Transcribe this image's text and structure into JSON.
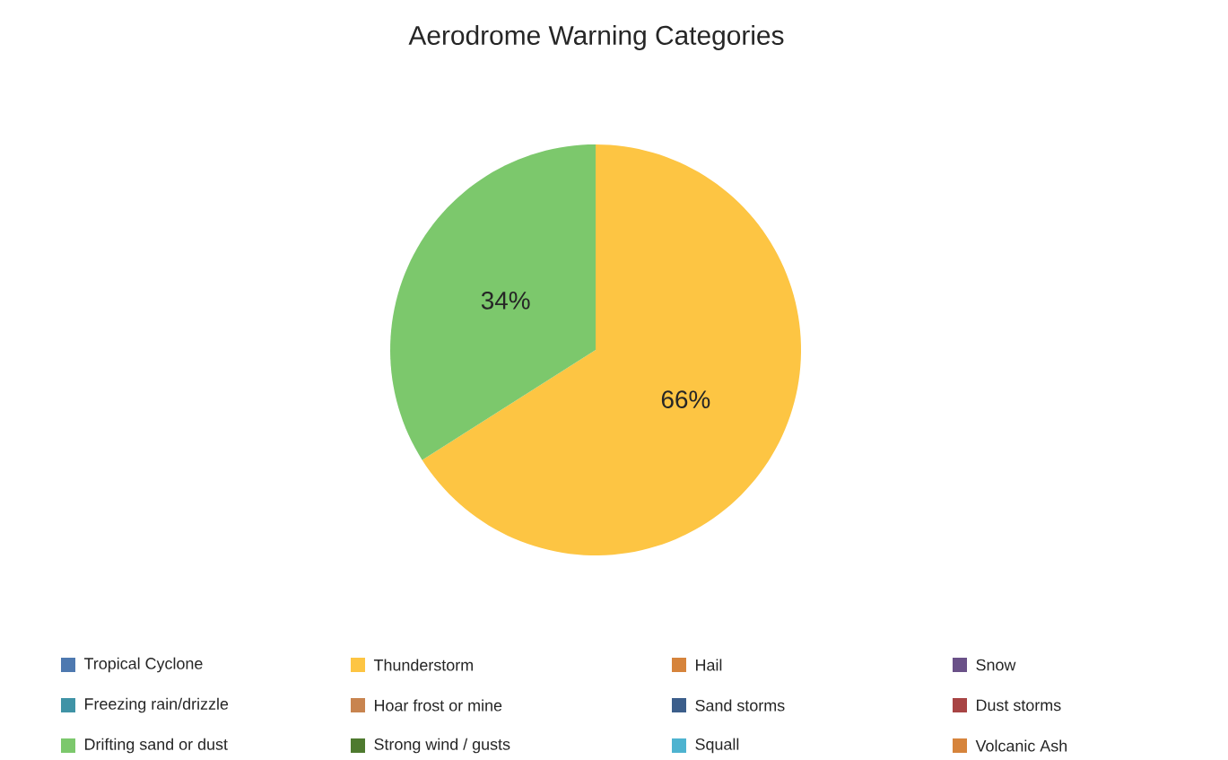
{
  "chart_data": {
    "type": "pie",
    "title": "Aerodrome Warning Categories",
    "categories": [
      "Tropical Cyclone",
      "Thunderstorm",
      "Hail",
      "Snow",
      "Freezing rain/drizzle",
      "Hoar frost or mine",
      "Sand storms",
      "Dust storms",
      "Drifting sand or dust",
      "Strong wind / gusts",
      "Squall",
      "Volcanic Ash"
    ],
    "values": [
      0,
      66,
      0,
      0,
      0,
      0,
      0,
      0,
      34,
      0,
      0,
      0
    ],
    "colors": [
      "#4e79b0",
      "#fdc543",
      "#d6843c",
      "#6a5188",
      "#3f93a6",
      "#c8844f",
      "#3c5e8b",
      "#a84444",
      "#7cc86c",
      "#4e7a2f",
      "#4eb3d0",
      "#d6843c"
    ],
    "value_labels": [
      null,
      "66%",
      null,
      null,
      null,
      null,
      null,
      null,
      "34%",
      null,
      null,
      null
    ],
    "legend": "bottom"
  }
}
